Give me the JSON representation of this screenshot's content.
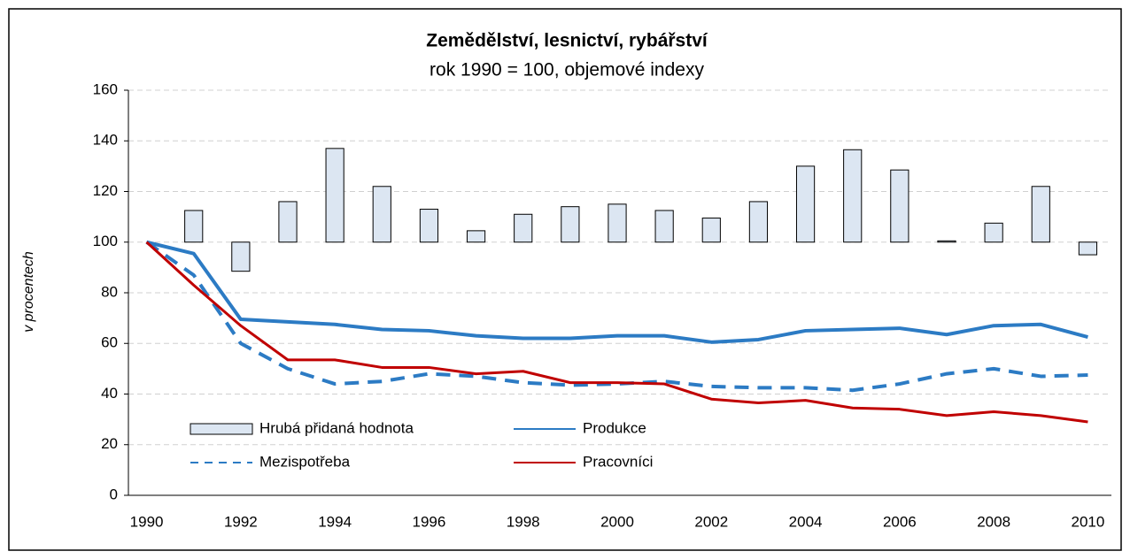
{
  "chart_data": {
    "type": "bar-line",
    "title": "Zemědělství, lesnictví, rybářství",
    "subtitle": "rok 1990 = 100, objemové indexy",
    "y_label": "v procentech",
    "categories": [
      "1990",
      null,
      "1992",
      null,
      "1994",
      null,
      "1996",
      null,
      "1998",
      null,
      "2000",
      null,
      "2002",
      null,
      "2004",
      null,
      "2006",
      null,
      "2008",
      null,
      "2010"
    ],
    "baseline": 100,
    "ylim": [
      0,
      160
    ],
    "yticks": [
      0,
      20,
      40,
      60,
      80,
      100,
      120,
      140,
      160
    ],
    "grid": true,
    "legend": "lower left",
    "series": [
      {
        "name": "Hrubá přidaná hodnota",
        "type": "bar",
        "color": "#dce6f2",
        "values": [
          100,
          112.5,
          88.5,
          116,
          137,
          122,
          113,
          104.5,
          111,
          114,
          115,
          112.5,
          109.5,
          116,
          130,
          136.5,
          128.5,
          100.5,
          107.5,
          122,
          95
        ]
      },
      {
        "name": "Produkce",
        "type": "line",
        "color": "#2c7bc4",
        "dash": false,
        "values": [
          100,
          95.5,
          69.5,
          68.5,
          67.5,
          65.5,
          65,
          63,
          62,
          62,
          63,
          63,
          60.5,
          61.5,
          65,
          65.5,
          66,
          63.5,
          67,
          67.5,
          62.5
        ]
      },
      {
        "name": "Mezispotřeba",
        "type": "line",
        "color": "#2c7bc4",
        "dash": true,
        "values": [
          100,
          87,
          60,
          50,
          44,
          45,
          48,
          47,
          44.5,
          43.5,
          44,
          45,
          43,
          42.5,
          42.5,
          41.5,
          44,
          48,
          50,
          47,
          47.5
        ]
      },
      {
        "name": "Pracovníci",
        "type": "line",
        "color": "#c00000",
        "dash": false,
        "values": [
          100,
          83,
          67,
          53.5,
          53.5,
          50.5,
          50.5,
          48,
          49,
          44.5,
          44.5,
          44,
          38,
          36.5,
          37.5,
          34.5,
          34,
          31.5,
          33,
          31.5,
          29
        ]
      }
    ]
  }
}
